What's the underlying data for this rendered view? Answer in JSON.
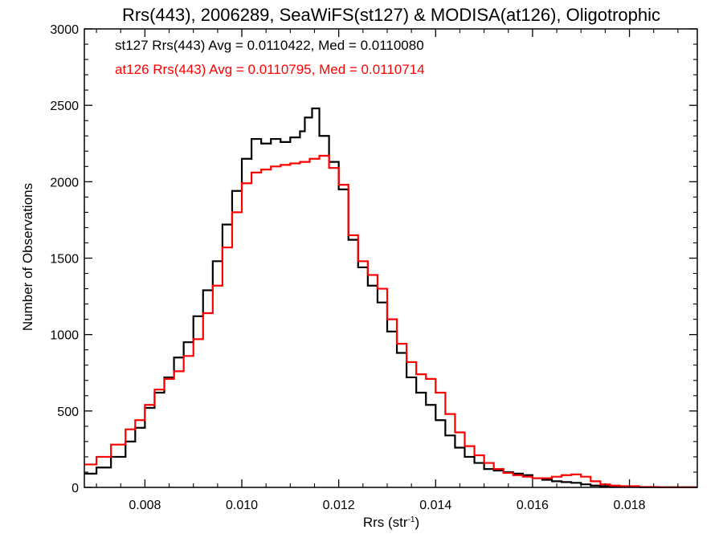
{
  "chart_data": {
    "type": "line",
    "title": "Rrs(443), 2006289, SeaWiFS(st127) & MODISA(at126), Oligotrophic",
    "xlabel": "Rrs (str",
    "xlabel_sup": "-1",
    "xlabel_close": ")",
    "ylabel": "Number of Observations",
    "xlim": [
      0.00675,
      0.0194
    ],
    "ylim": [
      0,
      3000
    ],
    "x_ticks": [
      "0.008",
      "0.010",
      "0.012",
      "0.014",
      "0.016",
      "0.018"
    ],
    "y_ticks": [
      "0",
      "500",
      "1000",
      "1500",
      "2000",
      "2500",
      "3000"
    ],
    "style": "step histogram",
    "grid": false,
    "legend_text": [
      {
        "text": "st127 Rrs(443) Avg = 0.0110422, Med = 0.0110080",
        "color": "#000000"
      },
      {
        "text": "at126 Rrs(443) Avg = 0.0110795, Med = 0.0110714",
        "color": "#ff0000"
      }
    ],
    "series": [
      {
        "color": "#000000",
        "points": [
          [
            0.00675,
            90
          ],
          [
            0.007,
            130
          ],
          [
            0.0073,
            200
          ],
          [
            0.0076,
            300
          ],
          [
            0.0078,
            390
          ],
          [
            0.008,
            520
          ],
          [
            0.0082,
            620
          ],
          [
            0.0084,
            720
          ],
          [
            0.0086,
            850
          ],
          [
            0.0088,
            950
          ],
          [
            0.009,
            1120
          ],
          [
            0.0092,
            1290
          ],
          [
            0.0094,
            1480
          ],
          [
            0.0096,
            1720
          ],
          [
            0.0098,
            1940
          ],
          [
            0.01,
            2150
          ],
          [
            0.0102,
            2280
          ],
          [
            0.0104,
            2250
          ],
          [
            0.0106,
            2280
          ],
          [
            0.0108,
            2260
          ],
          [
            0.011,
            2290
          ],
          [
            0.0112,
            2330
          ],
          [
            0.0113,
            2420
          ],
          [
            0.01145,
            2480
          ],
          [
            0.0116,
            2300
          ],
          [
            0.0118,
            2130
          ],
          [
            0.012,
            1950
          ],
          [
            0.0122,
            1620
          ],
          [
            0.0124,
            1440
          ],
          [
            0.0126,
            1320
          ],
          [
            0.0128,
            1210
          ],
          [
            0.013,
            1020
          ],
          [
            0.0132,
            880
          ],
          [
            0.0134,
            720
          ],
          [
            0.0136,
            620
          ],
          [
            0.0138,
            540
          ],
          [
            0.014,
            440
          ],
          [
            0.0142,
            340
          ],
          [
            0.0144,
            260
          ],
          [
            0.0146,
            200
          ],
          [
            0.0148,
            160
          ],
          [
            0.015,
            120
          ],
          [
            0.0152,
            110
          ],
          [
            0.0154,
            100
          ],
          [
            0.0156,
            90
          ],
          [
            0.0158,
            80
          ],
          [
            0.016,
            60
          ],
          [
            0.0162,
            50
          ],
          [
            0.0164,
            40
          ],
          [
            0.0166,
            35
          ],
          [
            0.0168,
            30
          ],
          [
            0.017,
            20
          ],
          [
            0.0172,
            12
          ],
          [
            0.0174,
            8
          ],
          [
            0.0176,
            5
          ],
          [
            0.0178,
            3
          ],
          [
            0.0182,
            2
          ],
          [
            0.0186,
            1
          ],
          [
            0.0194,
            0
          ]
        ]
      },
      {
        "color": "#ff0000",
        "points": [
          [
            0.00675,
            150
          ],
          [
            0.007,
            200
          ],
          [
            0.0073,
            280
          ],
          [
            0.0076,
            380
          ],
          [
            0.0078,
            440
          ],
          [
            0.008,
            540
          ],
          [
            0.0082,
            640
          ],
          [
            0.0084,
            710
          ],
          [
            0.0086,
            760
          ],
          [
            0.0088,
            860
          ],
          [
            0.009,
            970
          ],
          [
            0.0092,
            1140
          ],
          [
            0.0094,
            1320
          ],
          [
            0.0096,
            1570
          ],
          [
            0.0098,
            1800
          ],
          [
            0.01,
            1990
          ],
          [
            0.0102,
            2060
          ],
          [
            0.0104,
            2080
          ],
          [
            0.0106,
            2100
          ],
          [
            0.0108,
            2110
          ],
          [
            0.011,
            2120
          ],
          [
            0.0112,
            2130
          ],
          [
            0.0114,
            2150
          ],
          [
            0.0116,
            2170
          ],
          [
            0.0118,
            2090
          ],
          [
            0.012,
            1980
          ],
          [
            0.0122,
            1650
          ],
          [
            0.0124,
            1480
          ],
          [
            0.0126,
            1390
          ],
          [
            0.0128,
            1300
          ],
          [
            0.013,
            1100
          ],
          [
            0.0132,
            940
          ],
          [
            0.0134,
            820
          ],
          [
            0.0136,
            740
          ],
          [
            0.0138,
            710
          ],
          [
            0.014,
            620
          ],
          [
            0.0142,
            480
          ],
          [
            0.0144,
            360
          ],
          [
            0.0146,
            270
          ],
          [
            0.0148,
            210
          ],
          [
            0.015,
            160
          ],
          [
            0.0152,
            120
          ],
          [
            0.0154,
            95
          ],
          [
            0.0156,
            80
          ],
          [
            0.0158,
            70
          ],
          [
            0.016,
            60
          ],
          [
            0.0162,
            60
          ],
          [
            0.0164,
            70
          ],
          [
            0.0166,
            80
          ],
          [
            0.0168,
            85
          ],
          [
            0.017,
            70
          ],
          [
            0.0172,
            40
          ],
          [
            0.0174,
            20
          ],
          [
            0.0176,
            12
          ],
          [
            0.0178,
            8
          ],
          [
            0.0182,
            3
          ],
          [
            0.0186,
            1
          ],
          [
            0.0194,
            0
          ]
        ]
      }
    ]
  }
}
